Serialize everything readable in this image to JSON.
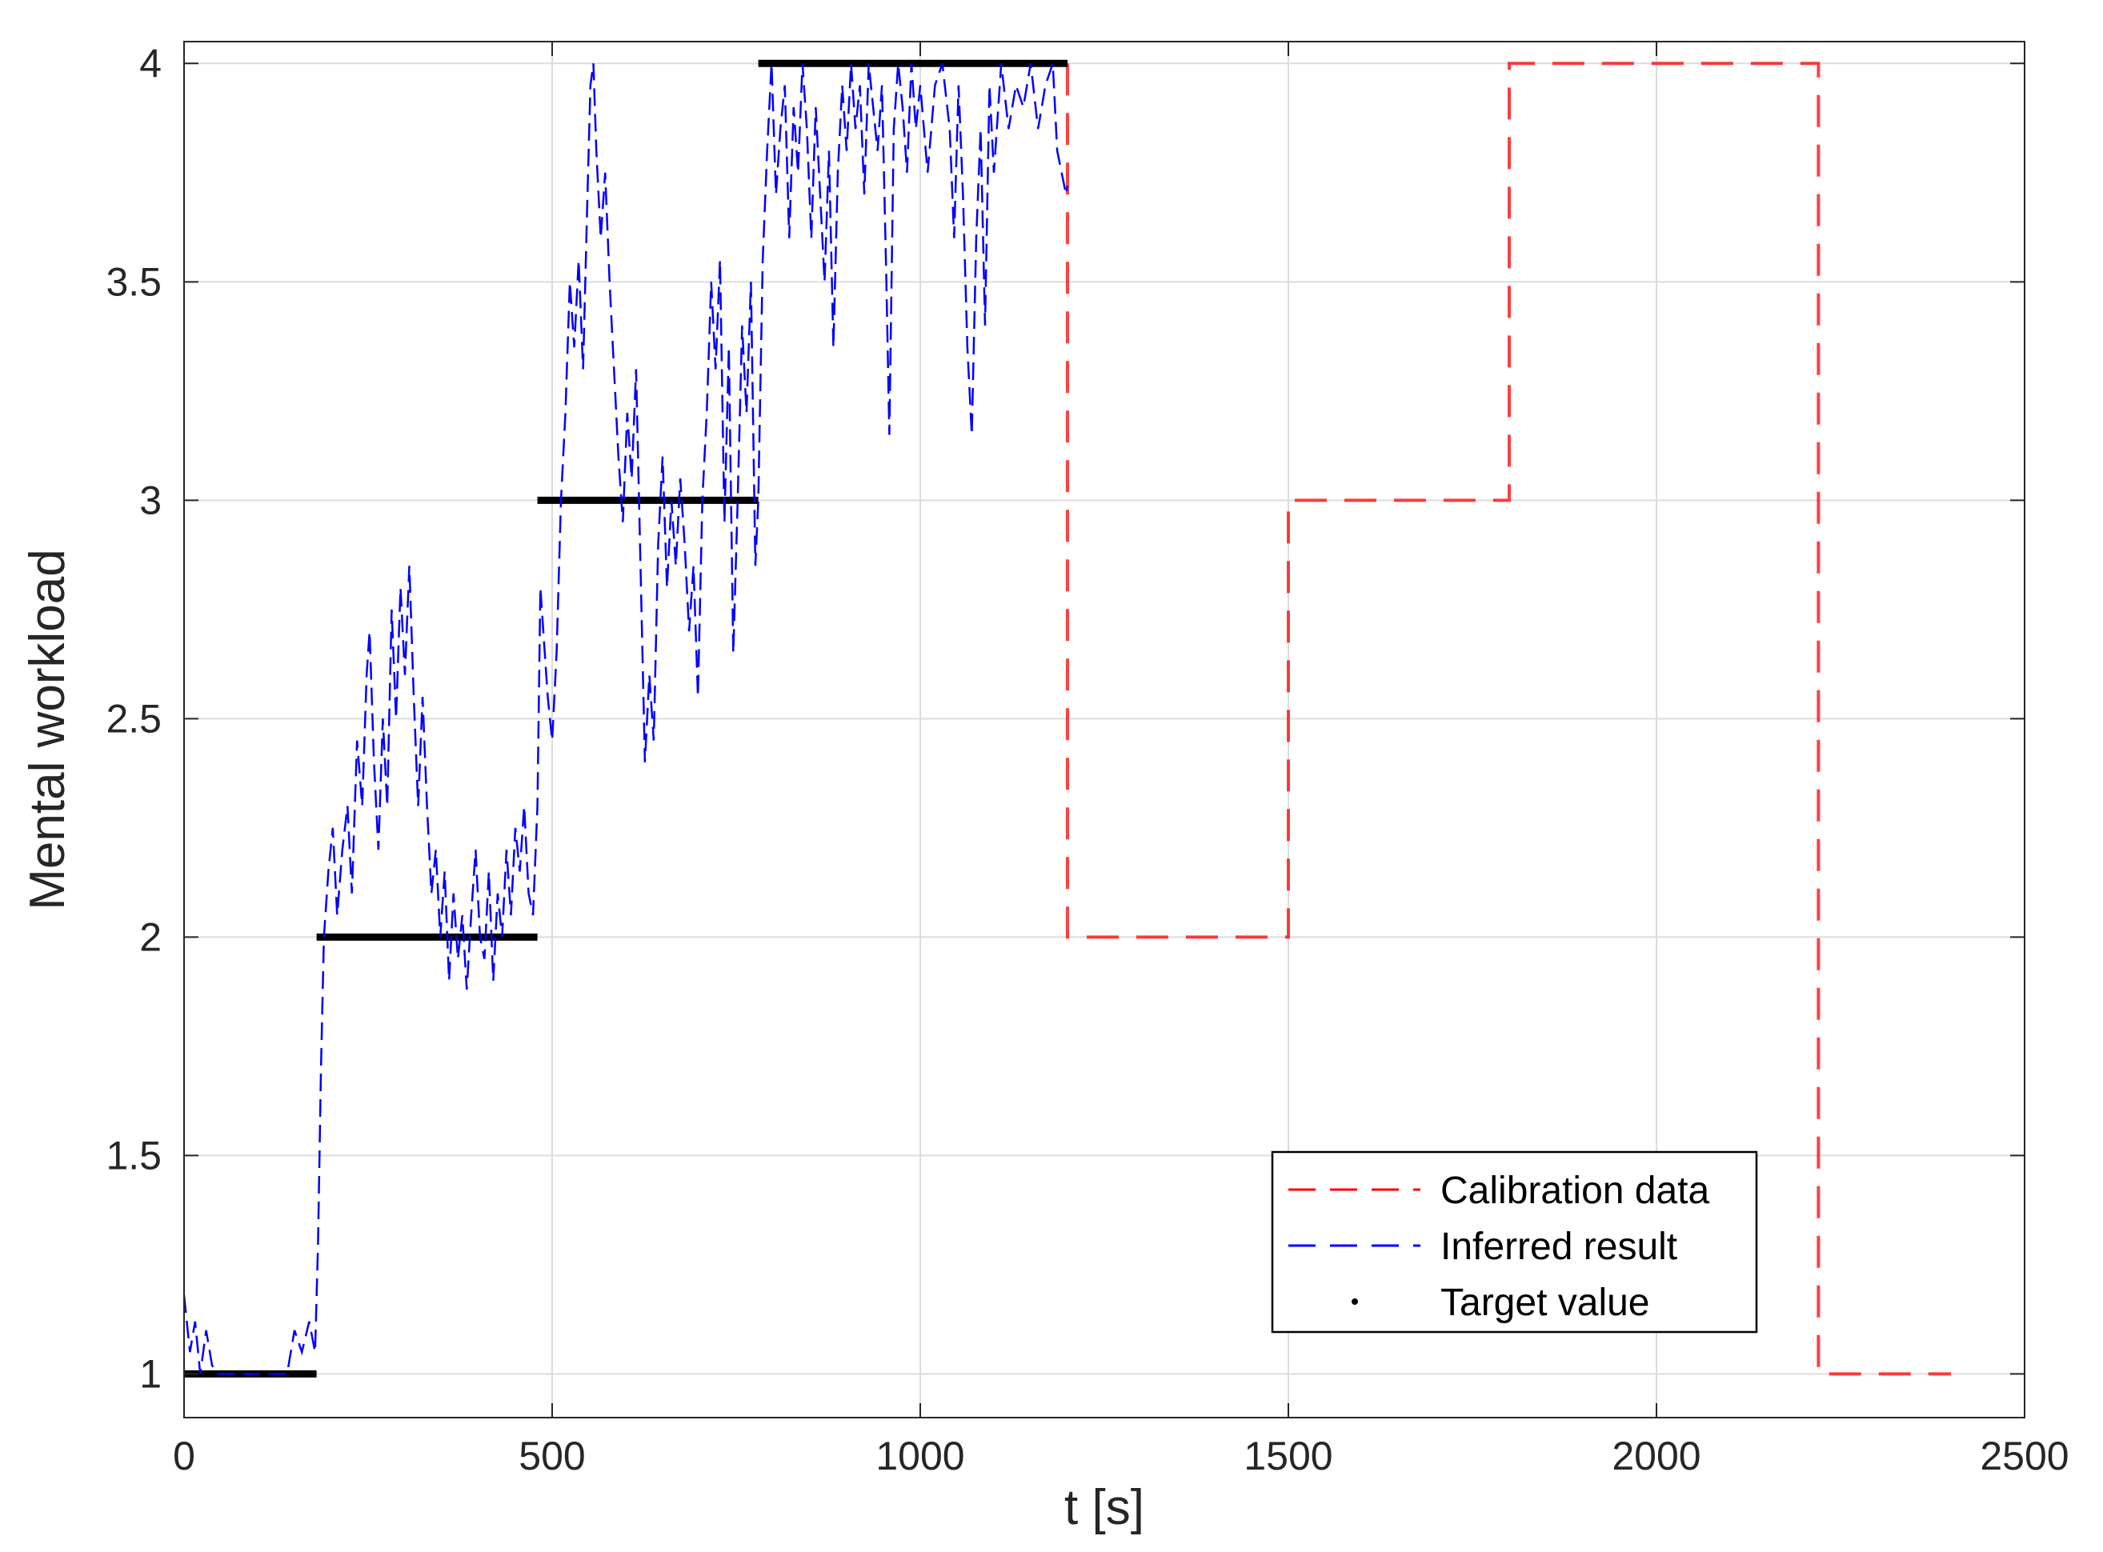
{
  "chart_data": {
    "type": "line",
    "title": "",
    "xlabel": "t [s]",
    "ylabel": "Mental workload",
    "xlim": [
      0,
      2500
    ],
    "ylim": [
      0.9,
      4.05
    ],
    "xticks": [
      0,
      500,
      1000,
      1500,
      2000,
      2500
    ],
    "xtick_labels": [
      "0",
      "500",
      "1000",
      "1500",
      "2000",
      "2500"
    ],
    "yticks": [
      1,
      1.5,
      2,
      2.5,
      3,
      3.5,
      4
    ],
    "ytick_labels": [
      "1",
      "1.5",
      "2",
      "2.5",
      "3",
      "3.5",
      "4"
    ],
    "grid": true,
    "legend_position": "bottom-right",
    "series": [
      {
        "name": "Calibration data",
        "style": "dashed",
        "color": "#ff0000",
        "points": [
          [
            1200,
            4.0
          ],
          [
            1200,
            2.0
          ],
          [
            1500,
            2.0
          ],
          [
            1500,
            3.0
          ],
          [
            1800,
            3.0
          ],
          [
            1800,
            4.0
          ],
          [
            2220,
            4.0
          ],
          [
            2220,
            1.0
          ],
          [
            2400,
            1.0
          ]
        ]
      },
      {
        "name": "Inferred result",
        "style": "dashed",
        "color": "#0000ff",
        "points": [
          [
            0,
            1.18
          ],
          [
            8,
            1.05
          ],
          [
            15,
            1.12
          ],
          [
            22,
            1.0
          ],
          [
            30,
            1.1
          ],
          [
            38,
            1.02
          ],
          [
            45,
            1.0
          ],
          [
            140,
            1.0
          ],
          [
            150,
            1.1
          ],
          [
            160,
            1.05
          ],
          [
            170,
            1.12
          ],
          [
            178,
            1.05
          ],
          [
            182,
            1.3
          ],
          [
            186,
            1.7
          ],
          [
            190,
            2.0
          ],
          [
            196,
            2.15
          ],
          [
            202,
            2.25
          ],
          [
            208,
            2.05
          ],
          [
            215,
            2.2
          ],
          [
            222,
            2.3
          ],
          [
            228,
            2.1
          ],
          [
            235,
            2.45
          ],
          [
            242,
            2.3
          ],
          [
            248,
            2.6
          ],
          [
            252,
            2.7
          ],
          [
            258,
            2.4
          ],
          [
            264,
            2.2
          ],
          [
            270,
            2.5
          ],
          [
            276,
            2.3
          ],
          [
            282,
            2.75
          ],
          [
            288,
            2.5
          ],
          [
            294,
            2.8
          ],
          [
            300,
            2.6
          ],
          [
            306,
            2.85
          ],
          [
            312,
            2.55
          ],
          [
            318,
            2.3
          ],
          [
            324,
            2.55
          ],
          [
            330,
            2.3
          ],
          [
            336,
            2.1
          ],
          [
            342,
            2.2
          ],
          [
            348,
            2.0
          ],
          [
            354,
            2.15
          ],
          [
            360,
            1.9
          ],
          [
            366,
            2.1
          ],
          [
            372,
            1.95
          ],
          [
            378,
            2.05
          ],
          [
            384,
            1.88
          ],
          [
            390,
            2.05
          ],
          [
            396,
            2.2
          ],
          [
            402,
            2.0
          ],
          [
            408,
            1.95
          ],
          [
            414,
            2.15
          ],
          [
            420,
            1.9
          ],
          [
            426,
            2.1
          ],
          [
            432,
            2.0
          ],
          [
            438,
            2.2
          ],
          [
            444,
            2.05
          ],
          [
            450,
            2.25
          ],
          [
            456,
            2.15
          ],
          [
            462,
            2.3
          ],
          [
            468,
            2.1
          ],
          [
            474,
            2.05
          ],
          [
            480,
            2.3
          ],
          [
            484,
            2.8
          ],
          [
            488,
            2.7
          ],
          [
            494,
            2.55
          ],
          [
            500,
            2.45
          ],
          [
            506,
            2.65
          ],
          [
            512,
            3.0
          ],
          [
            518,
            3.2
          ],
          [
            524,
            3.5
          ],
          [
            530,
            3.35
          ],
          [
            536,
            3.55
          ],
          [
            542,
            3.3
          ],
          [
            548,
            3.7
          ],
          [
            552,
            3.95
          ],
          [
            556,
            4.0
          ],
          [
            560,
            3.8
          ],
          [
            566,
            3.6
          ],
          [
            572,
            3.75
          ],
          [
            578,
            3.5
          ],
          [
            584,
            3.3
          ],
          [
            590,
            3.1
          ],
          [
            596,
            2.95
          ],
          [
            602,
            3.2
          ],
          [
            608,
            3.05
          ],
          [
            614,
            3.3
          ],
          [
            620,
            2.85
          ],
          [
            626,
            2.4
          ],
          [
            632,
            2.6
          ],
          [
            638,
            2.45
          ],
          [
            644,
            2.9
          ],
          [
            650,
            3.1
          ],
          [
            656,
            2.8
          ],
          [
            662,
            3.0
          ],
          [
            668,
            2.85
          ],
          [
            674,
            3.05
          ],
          [
            680,
            2.9
          ],
          [
            686,
            2.7
          ],
          [
            692,
            2.85
          ],
          [
            698,
            2.55
          ],
          [
            704,
            3.0
          ],
          [
            710,
            3.2
          ],
          [
            716,
            3.5
          ],
          [
            722,
            3.3
          ],
          [
            728,
            3.55
          ],
          [
            734,
            2.95
          ],
          [
            740,
            3.35
          ],
          [
            746,
            2.65
          ],
          [
            752,
            3.0
          ],
          [
            758,
            3.4
          ],
          [
            764,
            3.2
          ],
          [
            770,
            3.5
          ],
          [
            776,
            2.85
          ],
          [
            780,
            3.0
          ],
          [
            786,
            3.55
          ],
          [
            792,
            3.8
          ],
          [
            798,
            4.0
          ],
          [
            804,
            3.7
          ],
          [
            810,
            3.85
          ],
          [
            816,
            3.95
          ],
          [
            822,
            3.6
          ],
          [
            828,
            3.9
          ],
          [
            834,
            3.75
          ],
          [
            840,
            4.0
          ],
          [
            846,
            3.85
          ],
          [
            852,
            3.6
          ],
          [
            858,
            3.9
          ],
          [
            864,
            3.7
          ],
          [
            870,
            3.5
          ],
          [
            876,
            3.8
          ],
          [
            882,
            3.35
          ],
          [
            888,
            3.75
          ],
          [
            894,
            3.95
          ],
          [
            900,
            3.8
          ],
          [
            906,
            4.0
          ],
          [
            912,
            3.85
          ],
          [
            918,
            3.95
          ],
          [
            924,
            3.7
          ],
          [
            930,
            4.0
          ],
          [
            936,
            3.9
          ],
          [
            942,
            3.8
          ],
          [
            948,
            3.95
          ],
          [
            954,
            3.5
          ],
          [
            958,
            3.15
          ],
          [
            964,
            3.85
          ],
          [
            970,
            4.0
          ],
          [
            976,
            3.9
          ],
          [
            982,
            3.75
          ],
          [
            988,
            4.0
          ],
          [
            994,
            3.85
          ],
          [
            1000,
            3.95
          ],
          [
            1010,
            3.75
          ],
          [
            1020,
            3.95
          ],
          [
            1030,
            4.0
          ],
          [
            1040,
            3.85
          ],
          [
            1046,
            3.6
          ],
          [
            1052,
            3.95
          ],
          [
            1058,
            3.7
          ],
          [
            1064,
            3.35
          ],
          [
            1070,
            3.15
          ],
          [
            1076,
            3.6
          ],
          [
            1082,
            3.85
          ],
          [
            1088,
            3.4
          ],
          [
            1094,
            3.95
          ],
          [
            1100,
            3.75
          ],
          [
            1110,
            4.0
          ],
          [
            1120,
            3.85
          ],
          [
            1130,
            3.95
          ],
          [
            1140,
            3.9
          ],
          [
            1150,
            4.0
          ],
          [
            1160,
            3.85
          ],
          [
            1170,
            3.95
          ],
          [
            1180,
            4.0
          ],
          [
            1186,
            3.8
          ],
          [
            1192,
            3.75
          ],
          [
            1198,
            3.7
          ],
          [
            1200,
            3.72
          ]
        ]
      },
      {
        "name": "Target value",
        "style": "points",
        "color": "#000000",
        "segments": [
          {
            "x0": 0,
            "x1": 180,
            "y": 1.0
          },
          {
            "x0": 180,
            "x1": 480,
            "y": 2.0
          },
          {
            "x0": 480,
            "x1": 780,
            "y": 3.0
          },
          {
            "x0": 780,
            "x1": 1200,
            "y": 4.0
          }
        ]
      }
    ]
  }
}
